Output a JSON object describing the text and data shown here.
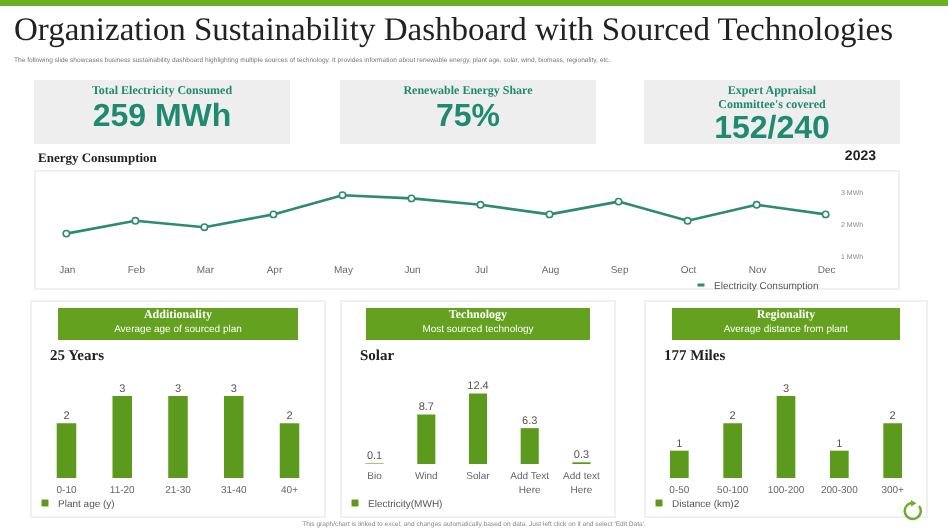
{
  "chart_data": [
    {
      "type": "other",
      "title": "Organization Sustainability Dashboard with Sourced Technologies",
      "subtitle": "The following slide showcases business sustainability dashboard highlighting multiple sources of technology. It provides information about renewable energy, plant age, solar, wind, biomass, regionality, etc.",
      "annotations": [
        "Total Electricity Consumed",
        "259 MWh",
        "Renewable Energy Share",
        "75%",
        "Expert Appraisal Committee's covered",
        "152/240",
        "This graph/chart is linked to excel, and changes automatically based on data. Just left click on it and select 'Edit Data'."
      ]
    },
    {
      "type": "line",
      "title": "Energy Consumption",
      "annotations": [
        "2023"
      ],
      "categories": [
        "Jan",
        "Feb",
        "Mar",
        "Apr",
        "May",
        "Jun",
        "Jul",
        "Aug",
        "Sep",
        "Oct",
        "Nov",
        "Dec"
      ],
      "series": [
        {
          "name": "Electricity Consumption",
          "color": "#2f8a72",
          "values": [
            1.7,
            2.1,
            1.9,
            2.3,
            2.9,
            2.8,
            2.6,
            2.3,
            2.7,
            2.1,
            2.6,
            2.3
          ]
        }
      ],
      "ylim": [
        1,
        3
      ],
      "yticks": [
        {
          "value": 1,
          "label": "1 MWh"
        },
        {
          "value": 2,
          "label": "2 MWh"
        },
        {
          "value": 3,
          "label": "3 MWh"
        }
      ],
      "marker": "circle",
      "legend": "bottom right"
    },
    {
      "type": "bar",
      "title": "Additionality",
      "subtitle": "Average age of sourced plan",
      "annotations": [
        "25 Years"
      ],
      "categories": [
        "0-10",
        "11-20",
        "21-30",
        "31-40",
        "40+"
      ],
      "series": [
        {
          "name": "Plant age (y)",
          "color": "#5b9a1c",
          "values": [
            2,
            3,
            3,
            3,
            2
          ]
        }
      ],
      "data_labels": true,
      "legend": "bottom"
    },
    {
      "type": "bar",
      "title": "Technology",
      "subtitle": "Most sourced technology",
      "annotations": [
        "Solar"
      ],
      "categories": [
        "Bio",
        "Wind",
        "Solar",
        "Add Text Here",
        "Add text Here"
      ],
      "series": [
        {
          "name": "Electricity(MWH)",
          "color": "#5b9a1c",
          "values": [
            0.1,
            8.7,
            12.4,
            6.3,
            0.3
          ]
        }
      ],
      "data_labels": true,
      "legend": "bottom"
    },
    {
      "type": "bar",
      "title": "Regionality",
      "subtitle": "Average distance from plant",
      "annotations": [
        "177 Miles"
      ],
      "categories": [
        "0-50",
        "50-100",
        "100-200",
        "200-300",
        "300+"
      ],
      "series": [
        {
          "name": "Distance (km)2",
          "color": "#5b9a1c",
          "values": [
            1,
            2,
            3,
            1,
            2
          ]
        }
      ],
      "data_labels": true,
      "legend": "bottom"
    }
  ]
}
